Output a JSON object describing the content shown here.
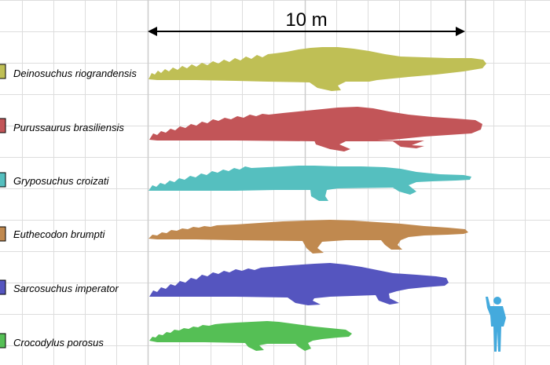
{
  "scale_bar": {
    "label": "10 m"
  },
  "species": [
    {
      "name": "Deinosuchus riograndensis",
      "color": "#bfbf55"
    },
    {
      "name": "Purussaurus brasiliensis",
      "color": "#c25558"
    },
    {
      "name": "Gryposuchus croizati",
      "color": "#55bfbf"
    },
    {
      "name": "Euthecodon brumpti",
      "color": "#c0894f"
    },
    {
      "name": "Sarcosuchus imperator",
      "color": "#5555bf"
    },
    {
      "name": "Crocodylus porosus",
      "color": "#55bf55"
    }
  ],
  "human": {
    "color": "#44aadd",
    "icon": "human-silhouette-icon"
  }
}
